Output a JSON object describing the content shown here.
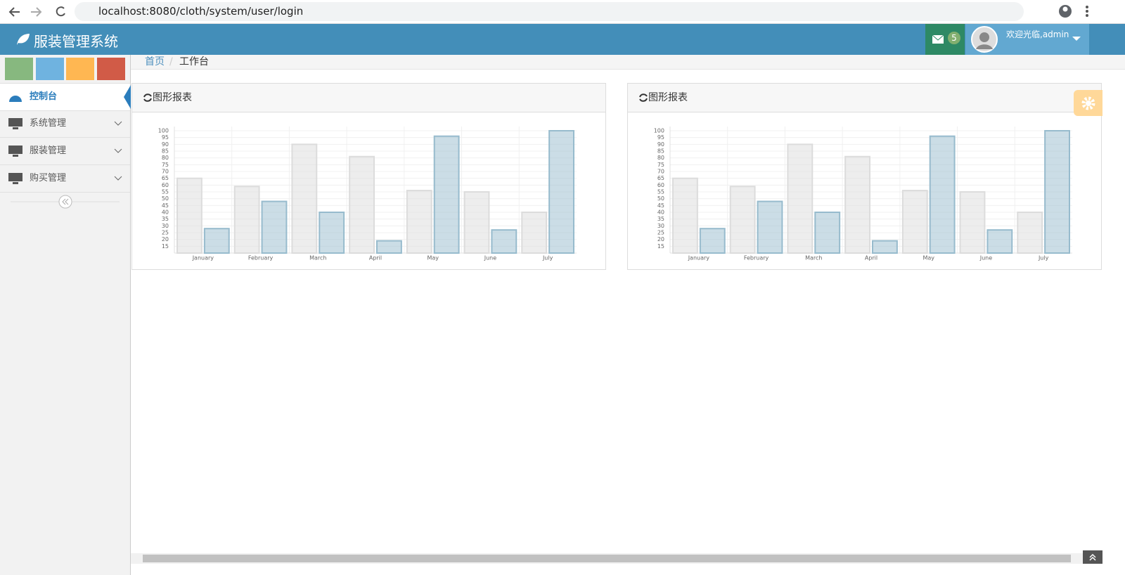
{
  "browser": {
    "url": "localhost:8080/cloth/system/user/login"
  },
  "header": {
    "title": "服装管理系统",
    "messages": "5",
    "greeting": "欢迎光临,admin"
  },
  "sidebar": {
    "items": [
      "控制台",
      "系统管理",
      "服装管理",
      "购买管理"
    ]
  },
  "breadcrumb": {
    "items": [
      "首页",
      "工作台"
    ]
  },
  "chart_data": [
    {
      "type": "bar",
      "title": "图形报表",
      "categories": [
        "January",
        "February",
        "March",
        "April",
        "May",
        "June",
        "July"
      ],
      "series": [
        {
          "color": "#dcdcdc",
          "values": [
            65,
            59,
            90,
            81,
            56,
            55,
            40
          ]
        },
        {
          "color": "#97bbcd",
          "values": [
            28,
            48,
            40,
            19,
            96,
            27,
            100
          ]
        }
      ],
      "ylim": [
        10,
        100
      ],
      "yticks": [
        15,
        20,
        25,
        30,
        35,
        40,
        45,
        50,
        55,
        60,
        65,
        70,
        75,
        80,
        85,
        90,
        95,
        100
      ],
      "grid": true
    },
    {
      "type": "bar",
      "title": "图形报表",
      "categories": [
        "January",
        "February",
        "March",
        "April",
        "May",
        "June",
        "July"
      ],
      "series": [
        {
          "color": "#dcdcdc",
          "values": [
            65,
            59,
            90,
            81,
            56,
            55,
            40
          ]
        },
        {
          "color": "#97bbcd",
          "values": [
            28,
            48,
            40,
            19,
            96,
            27,
            100
          ]
        }
      ],
      "ylim": [
        10,
        100
      ],
      "yticks": [
        15,
        20,
        25,
        30,
        35,
        40,
        45,
        50,
        55,
        60,
        65,
        70,
        75,
        80,
        85,
        90,
        95,
        100
      ],
      "grid": true
    }
  ]
}
